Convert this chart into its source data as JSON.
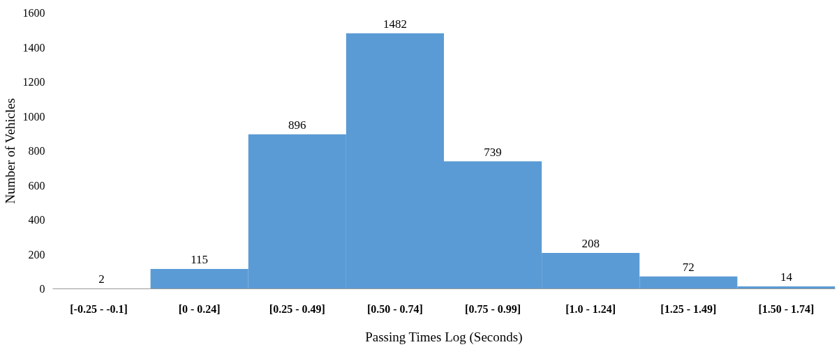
{
  "chart_data": {
    "type": "bar",
    "xlabel": "Passing Times Log (Seconds)",
    "ylabel": "Number of Vehicles",
    "categories": [
      "[-0.25  -  -0.1]",
      "[0 - 0.24]",
      "[0.25 - 0.49]",
      "[0.50 - 0.74]",
      "[0.75 - 0.99]",
      "[1.0 - 1.24]",
      "[1.25 - 1.49]",
      "[1.50 - 1.74]"
    ],
    "values": [
      2,
      115,
      896,
      1482,
      739,
      208,
      72,
      14
    ],
    "color": "#5b9bd5",
    "ylim": [
      0,
      1600
    ],
    "yticks": [
      0,
      200,
      400,
      600,
      800,
      1000,
      1200,
      1400,
      1600
    ],
    "grid": false,
    "data_labels": true
  }
}
